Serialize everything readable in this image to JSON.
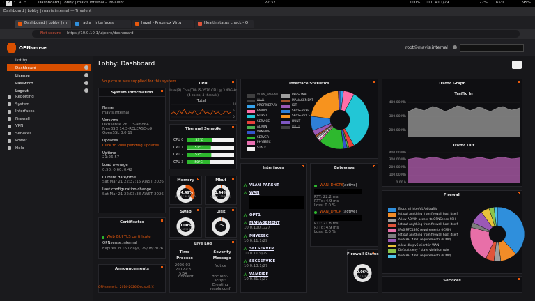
{
  "system_bar": {
    "workspaces": [
      "1",
      "2",
      "3",
      "4",
      "5"
    ],
    "window": "Dashboard | Lobby | mavis.internal - Trivalent",
    "clock": "22:37",
    "status": [
      "100%",
      "10.0.40.1/29",
      "22%",
      "65°C",
      "95%"
    ]
  },
  "browser": {
    "title": "Dashboard | Lobby | mavis.internal — Trivalent",
    "tabs": [
      "Dashboard | Lobby | m",
      "radia | Interfaces",
      "hazel - Proxmox Virtu",
      "Health status check - O"
    ],
    "security": "Not secure",
    "url": "https://10.0.10.1/ui/core/dashboard"
  },
  "header": {
    "brand": "OPNsense",
    "user": "root@mavis.internal"
  },
  "sidebar": {
    "lobby": "Lobby",
    "lobby_items": [
      "Dashboard",
      "License",
      "Password",
      "Logout"
    ],
    "items": [
      "Reporting",
      "System",
      "Interfaces",
      "Firewall",
      "VPN",
      "Services",
      "Power",
      "Help"
    ]
  },
  "page_title": "Lobby: Dashboard",
  "widgets": {
    "picture_note": "No picture was supplied for this system.",
    "system_information": {
      "title": "System Information",
      "fields": [
        {
          "label": "Name",
          "lines": [
            "mavis.internal"
          ]
        },
        {
          "label": "Versions",
          "lines": [
            "OPNsense 26.1.3-amd64",
            "FreeBSD 14.3-RELEASE-p9",
            "OpenSSL 3.0.19"
          ]
        },
        {
          "label": "Updates",
          "lines": [
            "Click to view pending updates."
          ]
        },
        {
          "label": "Uptime",
          "lines": [
            "21:26:57"
          ]
        },
        {
          "label": "Load average",
          "lines": [
            "0.50, 0.60, 0.42"
          ]
        },
        {
          "label": "Current date/time",
          "lines": [
            "Sat Mar 21 22:37:15 AWST 2026"
          ]
        },
        {
          "label": "Last configuration change",
          "lines": [
            "Sat Mar 21 22:03:38 AWST 2026"
          ]
        }
      ]
    },
    "certificates": {
      "title": "Certificates",
      "lines": [
        "Web GUI TLS certificate",
        "OPNsense.internal",
        "Expires in 160 days, 29/08/2026"
      ]
    },
    "announcements": {
      "title": "Announcements"
    },
    "cpu": {
      "title": "CPU",
      "model": "Intel(R) Core(TM) i5-3570 CPU @ 3.40GHz",
      "cores": "(4 cores, 4 threads)",
      "chart": {
        "type": "line",
        "title": "Total",
        "color": "#e8590c",
        "ylim": [
          0,
          10
        ],
        "yticks": [
          0,
          5,
          10
        ],
        "values": [
          3,
          4,
          2,
          5,
          3,
          6,
          2,
          4,
          3,
          5,
          2,
          3,
          6,
          3,
          4,
          2,
          5,
          3,
          4,
          2,
          3,
          5,
          3,
          4
        ]
      }
    },
    "thermal": {
      "title": "Thermal Sensors",
      "chart": {
        "type": "bar",
        "color": "#2eb82e",
        "xlim": [
          0,
          100
        ],
        "categories": [
          "CPU 0",
          "CPU 1",
          "CPU 2",
          "CPU 3"
        ],
        "values": [
          53,
          51,
          52,
          50
        ],
        "value_labels": [
          "53°C",
          "51°C",
          "52°C",
          "50°C"
        ]
      }
    },
    "gauges": [
      {
        "title": "Memory",
        "value": 34.49,
        "value_label": "34.49%",
        "detail": "(2763 / 8011 MB)"
      },
      {
        "title": "Mbuf",
        "value": 1.44,
        "value_label": "1.44%",
        "detail": "(4544 / 314946)"
      },
      {
        "title": "Swap",
        "value": 0,
        "value_label": "0.00%",
        "detail": "(0 / 8192 MB)"
      },
      {
        "title": "Disk",
        "value": 1,
        "value_label": "1%"
      }
    ],
    "live_log": {
      "title": "Live Log",
      "headers": [
        "Time",
        "Severity",
        "Process",
        "Message"
      ],
      "rows": [
        [
          "2026-03-21T22:35:54",
          "Notice",
          "dhclient",
          "dhclient-script: Creating resolv.conf"
        ]
      ]
    },
    "interface_statistics": {
      "title": "Interface Statistics",
      "chart": {
        "type": "pie",
        "categories": [
          "VLAN_PARENT",
          "WAN",
          "PROPRIETARY",
          "FAMILY",
          "GUEST",
          "SERVICE",
          "ADMIN",
          "VAMPIRE",
          "SERVER",
          "PHYSSEC",
          "STALK",
          "PERSONAL",
          "MANAGEMENT",
          "IOT",
          "SECSERVER",
          "SECSERVICE",
          "HUNT",
          "OPT1"
        ],
        "values": [
          null,
          null,
          2,
          6,
          34,
          3,
          1,
          2,
          14,
          1,
          1,
          1,
          1,
          3,
          8,
          22,
          1,
          null
        ],
        "colors": [
          "#888888",
          "#888888",
          "#36a2eb",
          "#ff6fa8",
          "#22c6d6",
          "#e8413b",
          "#4caf50",
          "#3355cc",
          "#2eb82e",
          "#e76fb0",
          "#eeeeee",
          "#9e9e9e",
          "#a0522d",
          "#9b59b6",
          "#2f7fd8",
          "#f7931e",
          "#7e57c2",
          "#888888"
        ]
      }
    },
    "interfaces": {
      "title": "Interfaces",
      "items": [
        {
          "name": "VLAN_PARENT"
        },
        {
          "name": "WAN"
        },
        {
          "name": "OPT1"
        },
        {
          "name": "MANAGEMENT",
          "address": "10.0.100.1/27"
        },
        {
          "name": "PHYSSEC",
          "address": "10.0.11.1/29"
        },
        {
          "name": "SECSERVER",
          "address": "10.0.11.9/29"
        },
        {
          "name": "SECSERVICE",
          "address": "10.0.13.1/27"
        },
        {
          "name": "VAMPIRE",
          "address": "10.0.31.1/27"
        }
      ]
    },
    "gateways": {
      "title": "Gateways",
      "items": [
        {
          "name": "WAN_DHCP6",
          "status": "(active)",
          "stats": [
            "RTT: 22.2 ms",
            "RTTd: 4.9 ms",
            "Loss: 0.0 %"
          ]
        },
        {
          "name": "WAN_DHCP",
          "status": "(active)",
          "stats": [
            "RTT: 21.8 ms",
            "RTTd: 4.9 ms",
            "Loss: 0.0 %"
          ]
        }
      ]
    },
    "firewall_states": {
      "title": "Firewall States",
      "value": 0.06,
      "value_label": "0.06%",
      "detail": "(359 / 614000)"
    },
    "traffic": {
      "title": "Traffic Graph",
      "charts": [
        {
          "type": "area",
          "title": "Traffic In",
          "color": "#8c8c8c",
          "ylim": [
            150,
            420
          ],
          "yticks": [
            {
              "value": 200,
              "label": "200.00 Mb"
            },
            {
              "value": 300,
              "label": "300.00 Mb"
            },
            {
              "value": 400,
              "label": "400.00 Mb"
            }
          ],
          "values": [
            330,
            345,
            360,
            350,
            340,
            355,
            370,
            365,
            350,
            335,
            345,
            360,
            375,
            370,
            355,
            340,
            350,
            365,
            360,
            345,
            335,
            350,
            365,
            370,
            355,
            345,
            350,
            360
          ]
        },
        {
          "type": "area",
          "title": "Traffic Out",
          "color": "#a0559e",
          "ylim": [
            0,
            420
          ],
          "yticks": [
            {
              "value": 0,
              "label": "0.00 b"
            },
            {
              "value": 100,
              "label": "100.00 Mb"
            },
            {
              "value": 200,
              "label": "200.00 Mb"
            },
            {
              "value": 300,
              "label": "300.00 Mb"
            },
            {
              "value": 400,
              "label": "400.00 Mb"
            }
          ],
          "values": [
            310,
            320,
            330,
            325,
            315,
            330,
            340,
            335,
            320,
            310,
            318,
            330,
            345,
            340,
            328,
            315,
            322,
            335,
            332,
            318,
            310,
            322,
            336,
            340,
            328,
            318,
            322,
            330
          ]
        }
      ]
    },
    "firewall": {
      "title": "Firewall",
      "chart": {
        "type": "pie",
        "categories": [
          "Block all inter-VLAN traffic",
          "let out anything from firewall host itself",
          "Allow ADMIN access to OPNSense SSH",
          "let out anything from firewall host itself",
          "IPv6 RFC4890 requirements (ICMP)",
          "let out anything from firewall host itself",
          "IPv6 RFC4890 requirements (ICMP)",
          "allow dhcpv6 client in WAN",
          "Default deny / state violation rule",
          "IPv6 RFC4890 requirements (ICMP)"
        ],
        "values": [
          38,
          10,
          4,
          5,
          22,
          3,
          8,
          5,
          3,
          2
        ],
        "colors": [
          "#2f8fdc",
          "#f28c28",
          "#9e9e9e",
          "#e0543a",
          "#e86fa8",
          "#7d7d7d",
          "#9b59b6",
          "#e8c23a",
          "#8bc34a",
          "#4dc3e8"
        ]
      }
    },
    "services": {
      "title": "Services"
    }
  },
  "footer": "OPNsense (c) 2014-2026 Deciso B.V."
}
